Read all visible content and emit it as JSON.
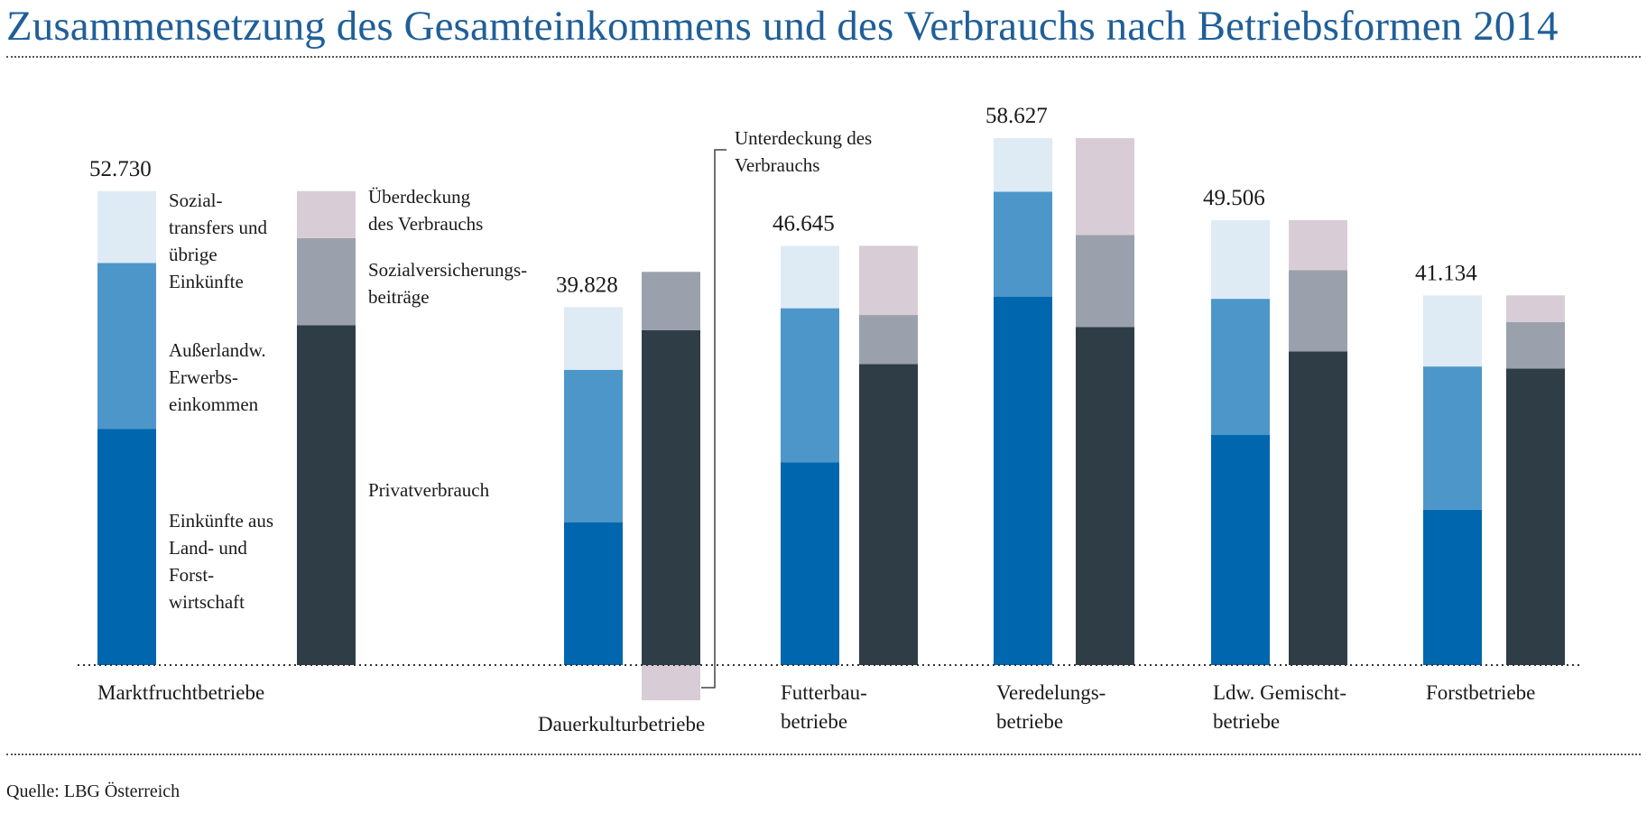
{
  "title": "Zusammensetzung des Gesamteinkommens und des Verbrauchs nach Betriebsformen 2014",
  "source": "Quelle: LBG Österreich",
  "colors": {
    "land_forst": "#0066ad",
    "ausserlandw": "#4d96c9",
    "sozialtransfers": "#deebf5",
    "privatverbrauch": "#2f3d47",
    "sozialversicherung": "#9aa1ad",
    "ueberdeckung": "#d8cdd6",
    "unterdeckung": "#d8cdd6"
  },
  "chart_data": {
    "type": "bar",
    "stacked": true,
    "categories": [
      [
        "Marktfruchtbetriebe"
      ],
      [
        "Dauerkulturbetriebe"
      ],
      [
        "Futterbau-",
        "betriebe"
      ],
      [
        "Veredelungs-",
        "betriebe"
      ],
      [
        "Ldw. Gemischt-",
        "betriebe"
      ],
      [
        "Forstbetriebe"
      ]
    ],
    "totals": [
      "52.730",
      "39.828",
      "46.645",
      "58.627",
      "49.506",
      "41.134"
    ],
    "einkommen": {
      "series": [
        {
          "name": "Einkünfte aus Land- und Forstwirtschaft",
          "color_key": "land_forst",
          "values": [
            26290,
            15900,
            22570,
            41000,
            25600,
            17280
          ]
        },
        {
          "name": "Außerlandw. Erwerbseinkommen",
          "color_key": "ausserlandw",
          "values": [
            18450,
            16950,
            17130,
            11660,
            15150,
            15940
          ]
        },
        {
          "name": "Sozialtransfers und übrige Einkünfte",
          "color_key": "sozialtransfers",
          "values": [
            7990,
            6978,
            6945,
            5967,
            8756,
            7914
          ]
        }
      ]
    },
    "verbrauch": {
      "series": [
        {
          "name": "Privatverbrauch",
          "color_key": "privatverbrauch",
          "values": [
            37800,
            37250,
            33500,
            37600,
            34900,
            33000
          ]
        },
        {
          "name": "Sozialversicherungsbeiträge",
          "color_key": "sozialversicherung",
          "values": [
            9700,
            6500,
            5450,
            10250,
            9050,
            5150
          ]
        },
        {
          "name": "Überdeckung des Verbrauchs",
          "color_key": "ueberdeckung",
          "values": [
            5230,
            0,
            7695,
            10777,
            5556,
            2984
          ]
        },
        {
          "name": "Unterdeckung des Verbrauchs",
          "color_key": "unterdeckung",
          "values": [
            0,
            -3922,
            0,
            0,
            0,
            0
          ]
        }
      ]
    },
    "legend_labels": {
      "sozialtransfers": [
        "Sozial-",
        "transfers und",
        "übrige",
        "Einkünfte"
      ],
      "ausserlandw": [
        "Außerlandw.",
        "Erwerbs-",
        "einkommen"
      ],
      "land_forst": [
        "Einkünfte aus",
        "Land- und",
        "Forst-",
        "wirtschaft"
      ],
      "ueberdeckung": [
        "Überdeckung",
        "des Verbrauchs"
      ],
      "sozialversicherung": [
        "Sozialversicherungs-",
        "beiträge"
      ],
      "privatverbrauch": [
        "Privatverbrauch"
      ],
      "unterdeckung": [
        "Unterdeckung des",
        "Verbrauchs"
      ]
    },
    "ylim": [
      -4000,
      60000
    ],
    "grid": false
  }
}
